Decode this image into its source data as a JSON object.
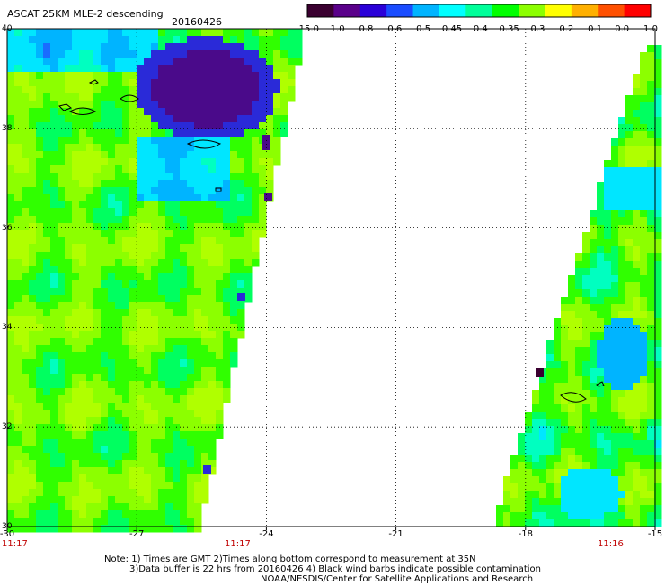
{
  "header": {
    "product": "ASCAT 25KM MLE-2 descending",
    "date": "20160426"
  },
  "colorbar": {
    "labels": [
      "-15.0",
      "-1.0",
      "-0.8",
      "-0.6",
      "-0.5",
      "-0.45",
      "-0.4",
      "-0.35",
      "-0.3",
      "-0.2",
      "-0.1",
      "0.0",
      "1.0"
    ],
    "colors": [
      "#3a0030",
      "#5a008a",
      "#2a00d8",
      "#1a4cff",
      "#00b4ff",
      "#00ffff",
      "#00ff9a",
      "#00ff00",
      "#8cff00",
      "#ffff00",
      "#ffb000",
      "#ff5000",
      "#ff0000"
    ]
  },
  "axes": {
    "y_ticks": [
      "40",
      "38",
      "36",
      "34",
      "32",
      "30"
    ],
    "x_ticks": [
      "-30",
      "-27",
      "-24",
      "-21",
      "-18",
      "-15"
    ]
  },
  "swath_times": {
    "left_1": "11:17",
    "left_2": "11:17",
    "right": "11:16"
  },
  "notes": {
    "line1": "Note: 1) Times are GMT  2)Times along bottom correspond to measurement at 35N",
    "line2": "3)Data buffer is 22 hrs from 20160426  4) Black wind barbs indicate possible contamination",
    "line3": "NOAA/NESDIS/Center for Satellite Applications and Research"
  },
  "map": {
    "lon_range": [
      -30,
      -15
    ],
    "lat_range": [
      30,
      40
    ],
    "grid_lon": [
      -27,
      -24,
      -21,
      -18
    ],
    "grid_lat": [
      38,
      36,
      34,
      32
    ]
  }
}
